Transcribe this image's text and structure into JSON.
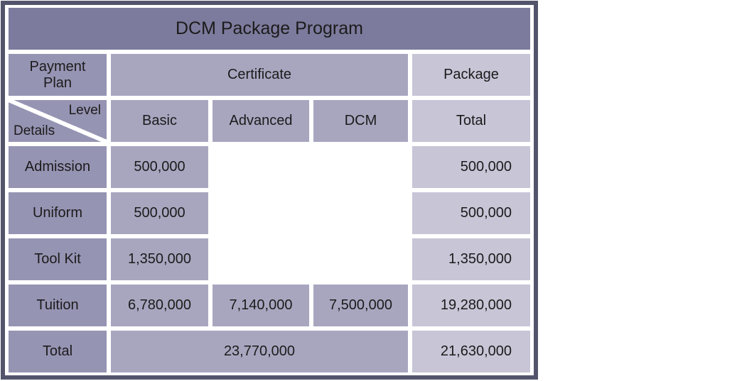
{
  "title": "DCM Package Program",
  "colors": {
    "border": "#53546C",
    "title_bg": "#7C7B9D",
    "label_bg": "#9694B3",
    "mid_bg": "#A8A6BF",
    "light_bg": "#C7C5D6"
  },
  "header": {
    "payment_plan": "Payment\nPlan",
    "certificate": "Certificate",
    "package": "Package",
    "corner": {
      "top_right": "Level",
      "bottom_left": "Details"
    },
    "level_columns": [
      "Basic",
      "Advanced",
      "DCM"
    ],
    "total_column": "Total"
  },
  "rows": [
    {
      "label": "Admission",
      "basic": "500,000",
      "advanced": "",
      "dcm": "",
      "total": "500,000"
    },
    {
      "label": "Uniform",
      "basic": "500,000",
      "advanced": "",
      "dcm": "",
      "total": "500,000"
    },
    {
      "label": "Tool Kit",
      "basic": "1,350,000",
      "advanced": "",
      "dcm": "",
      "total": "1,350,000"
    },
    {
      "label": "Tuition",
      "basic": "6,780,000",
      "advanced": "7,140,000",
      "dcm": "7,500,000",
      "total": "19,280,000"
    }
  ],
  "footer": {
    "label": "Total",
    "certificate_total": "23,770,000",
    "package_total": "21,630,000"
  }
}
